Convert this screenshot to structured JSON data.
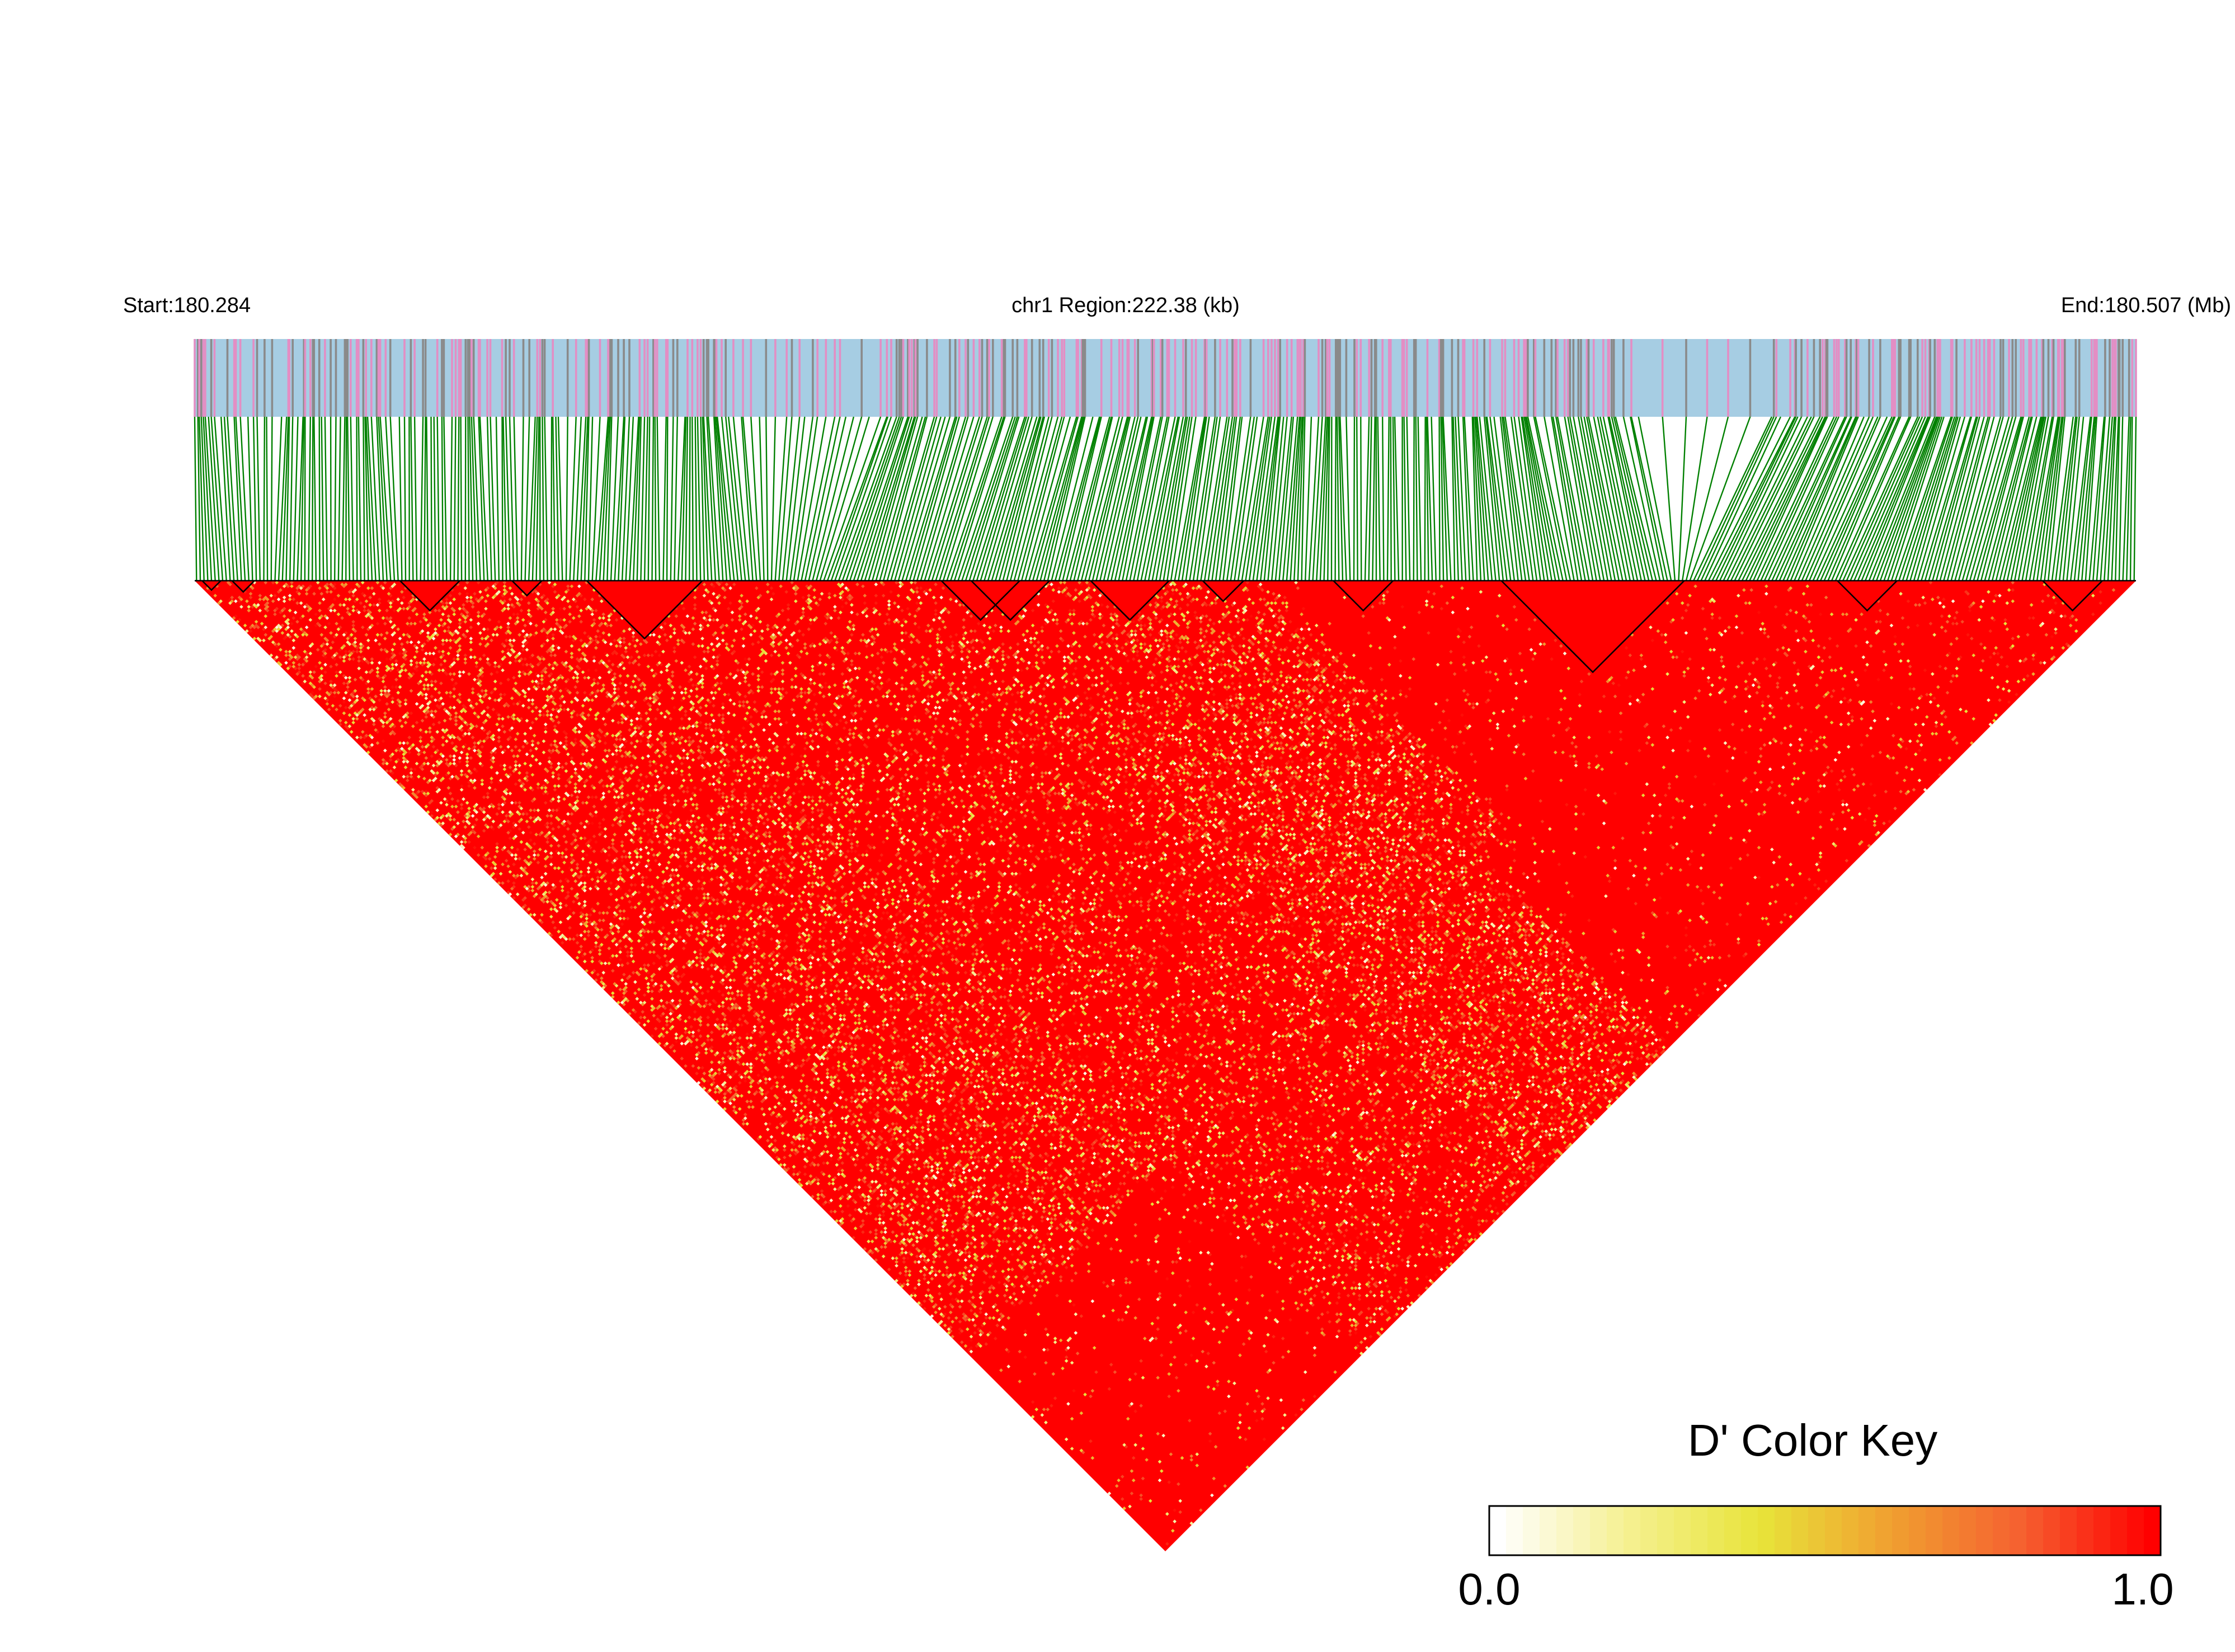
{
  "chart_data": {
    "type": "heatmap",
    "title": "",
    "chromosome_label": "chr1 Region:222.38 (kb)",
    "start_label": "Start:180.284",
    "end_label": "End:180.507 (Mb)",
    "region_start_mb": 180.284,
    "region_end_mb": 180.507,
    "region_length_kb": 222.38,
    "snp_count_approx": 520,
    "metric": "D'",
    "colormap": {
      "title": "D' Color Key",
      "min_label": "0.0",
      "max_label": "1.0",
      "min": 0.0,
      "max": 1.0,
      "stops": [
        "#ffffff",
        "#f5f090",
        "#e8e43a",
        "#f0a030",
        "#f56030",
        "#ff0000"
      ]
    },
    "dominant_value": 1.0,
    "haplotype_blocks_approx_snp_ranges": [
      [
        2,
        6
      ],
      [
        10,
        15
      ],
      [
        55,
        70
      ],
      [
        85,
        92
      ],
      [
        105,
        135
      ],
      [
        200,
        220
      ],
      [
        208,
        228
      ],
      [
        240,
        260
      ],
      [
        270,
        280
      ],
      [
        305,
        320
      ],
      [
        350,
        398
      ],
      [
        440,
        455
      ],
      [
        495,
        510
      ]
    ],
    "colors": {
      "track_background": "#a6cde3",
      "track_pink": "#e38ec4",
      "track_gray": "#8a8a8a",
      "connector_line": "#008000",
      "block_outline": "#000000",
      "high_ld": "#ff0000"
    }
  }
}
